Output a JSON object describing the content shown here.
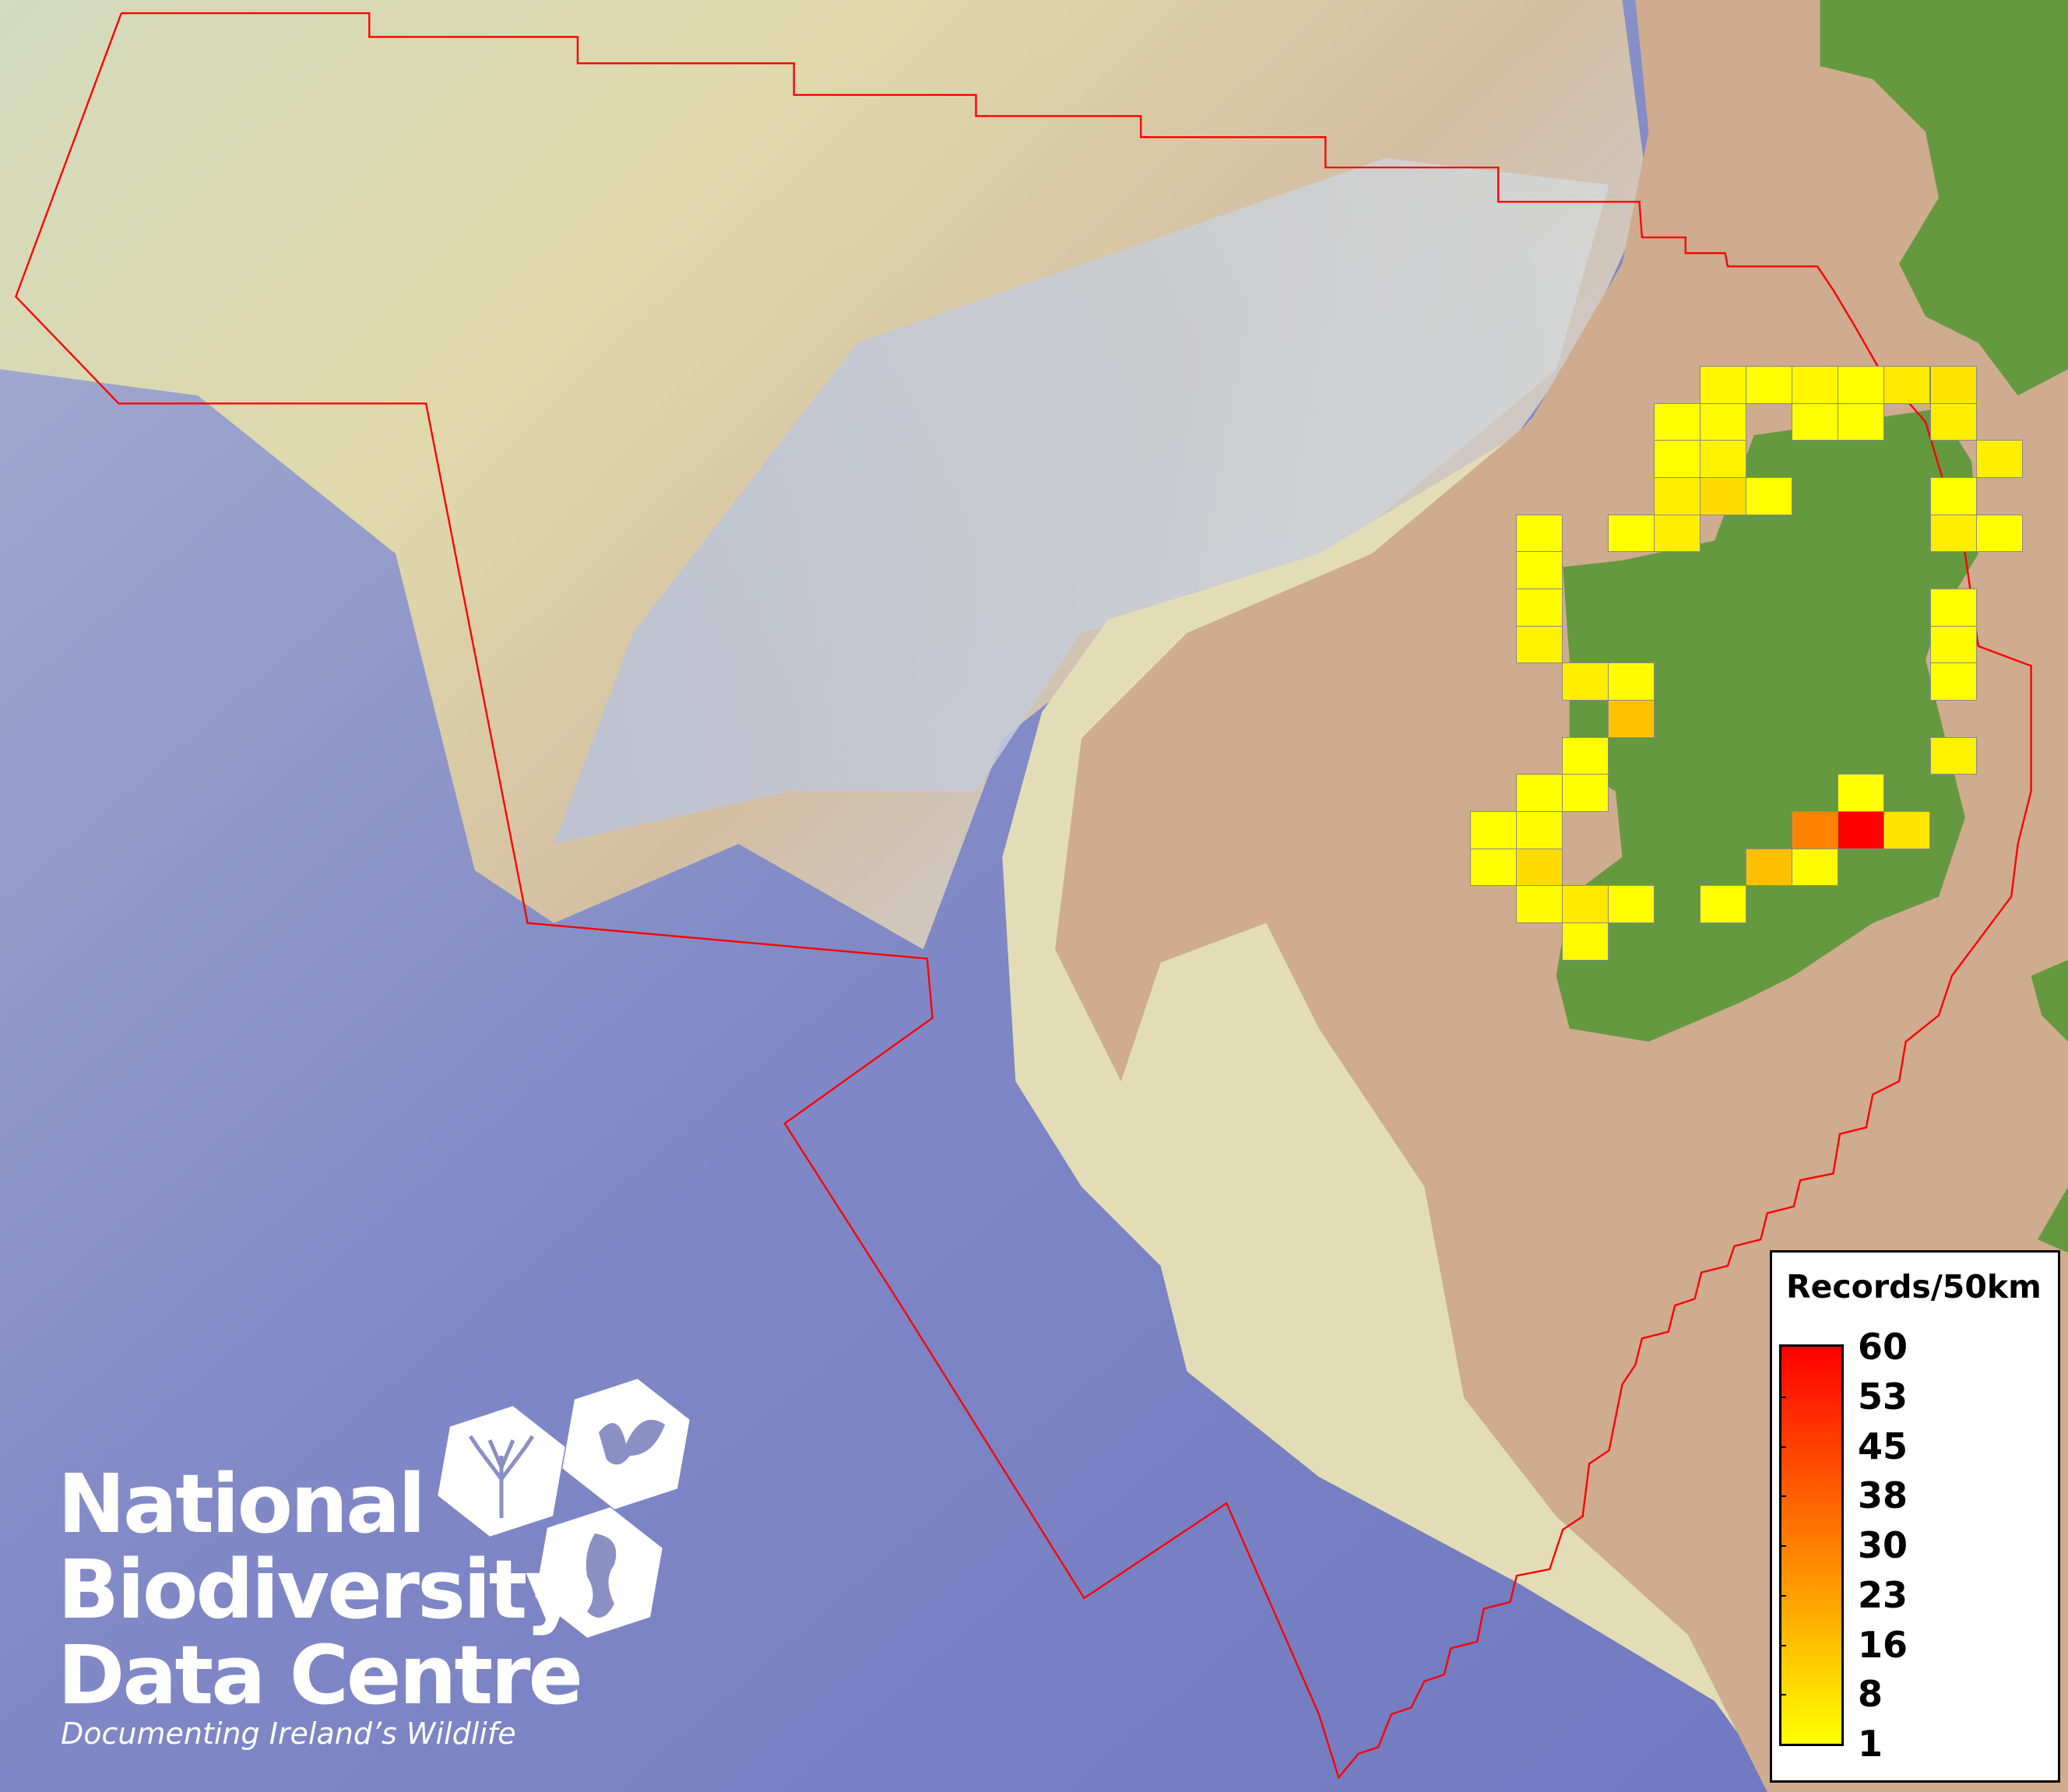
{
  "map": {
    "colors": {
      "deep_ocean": "#7c84c4",
      "shelf": "#dfe2b8",
      "slope": "#c8cfd6",
      "land_margin": "#cfab8f",
      "land": "#65993f",
      "boundary": "#ff0000",
      "cell_border": "#8a8a8a"
    },
    "grid_cells": [
      {
        "grid_col": 5,
        "grid_row": 0,
        "value": 3
      },
      {
        "grid_col": 6,
        "grid_row": 0,
        "value": 1
      },
      {
        "grid_col": 7,
        "grid_row": 0,
        "value": 3
      },
      {
        "grid_col": 8,
        "grid_row": 0,
        "value": 1
      },
      {
        "grid_col": 9,
        "grid_row": 0,
        "value": 6
      },
      {
        "grid_col": 10,
        "grid_row": 0,
        "value": 7
      },
      {
        "grid_col": 4,
        "grid_row": 1,
        "value": 1
      },
      {
        "grid_col": 5,
        "grid_row": 1,
        "value": 2
      },
      {
        "grid_col": 7,
        "grid_row": 1,
        "value": 1
      },
      {
        "grid_col": 8,
        "grid_row": 1,
        "value": 1
      },
      {
        "grid_col": 10,
        "grid_row": 1,
        "value": 5
      },
      {
        "grid_col": 4,
        "grid_row": 2,
        "value": 1
      },
      {
        "grid_col": 5,
        "grid_row": 2,
        "value": 4
      },
      {
        "grid_col": 11,
        "grid_row": 2,
        "value": 5
      },
      {
        "grid_col": 4,
        "grid_row": 3,
        "value": 5
      },
      {
        "grid_col": 5,
        "grid_row": 3,
        "value": 9
      },
      {
        "grid_col": 6,
        "grid_row": 3,
        "value": 1
      },
      {
        "grid_col": 10,
        "grid_row": 3,
        "value": 1
      },
      {
        "grid_col": 1,
        "grid_row": 4,
        "value": 1
      },
      {
        "grid_col": 3,
        "grid_row": 4,
        "value": 1
      },
      {
        "grid_col": 4,
        "grid_row": 4,
        "value": 5
      },
      {
        "grid_col": 10,
        "grid_row": 4,
        "value": 5
      },
      {
        "grid_col": 11,
        "grid_row": 4,
        "value": 1
      },
      {
        "grid_col": 1,
        "grid_row": 5,
        "value": 1
      },
      {
        "grid_col": 1,
        "grid_row": 6,
        "value": 2
      },
      {
        "grid_col": 10,
        "grid_row": 6,
        "value": 1
      },
      {
        "grid_col": 1,
        "grid_row": 7,
        "value": 4
      },
      {
        "grid_col": 10,
        "grid_row": 7,
        "value": 2
      },
      {
        "grid_col": 2,
        "grid_row": 8,
        "value": 5
      },
      {
        "grid_col": 3,
        "grid_row": 8,
        "value": 2
      },
      {
        "grid_col": 10,
        "grid_row": 8,
        "value": 1
      },
      {
        "grid_col": 3,
        "grid_row": 9,
        "value": 15
      },
      {
        "grid_col": 2,
        "grid_row": 10,
        "value": 1
      },
      {
        "grid_col": 10,
        "grid_row": 10,
        "value": 4
      },
      {
        "grid_col": 1,
        "grid_row": 11,
        "value": 1
      },
      {
        "grid_col": 2,
        "grid_row": 11,
        "value": 1
      },
      {
        "grid_col": 8,
        "grid_row": 11,
        "value": 1
      },
      {
        "grid_col": 0,
        "grid_row": 12,
        "value": 1
      },
      {
        "grid_col": 1,
        "grid_row": 12,
        "value": 2
      },
      {
        "grid_col": 7,
        "grid_row": 12,
        "value": 30
      },
      {
        "grid_col": 8,
        "grid_row": 12,
        "value": 60
      },
      {
        "grid_col": 9,
        "grid_row": 12,
        "value": 7
      },
      {
        "grid_col": 0,
        "grid_row": 13,
        "value": 1
      },
      {
        "grid_col": 1,
        "grid_row": 13,
        "value": 9
      },
      {
        "grid_col": 6,
        "grid_row": 13,
        "value": 16
      },
      {
        "grid_col": 7,
        "grid_row": 13,
        "value": 2
      },
      {
        "grid_col": 1,
        "grid_row": 14,
        "value": 2
      },
      {
        "grid_col": 2,
        "grid_row": 14,
        "value": 6
      },
      {
        "grid_col": 3,
        "grid_row": 14,
        "value": 1
      },
      {
        "grid_col": 5,
        "grid_row": 14,
        "value": 1
      },
      {
        "grid_col": 2,
        "grid_row": 15,
        "value": 2
      }
    ]
  },
  "legend": {
    "title": "Records/50km",
    "min": 1,
    "max": 60,
    "color_min": "#ffff00",
    "color_max": "#ff0000",
    "ticks": [
      "60",
      "53",
      "45",
      "38",
      "30",
      "23",
      "16",
      "8",
      "1"
    ]
  },
  "logo": {
    "line1": "National",
    "line2": "Biodiversity",
    "line3": "Data Centre",
    "tagline": "Documenting Ireland’s Wildlife"
  }
}
